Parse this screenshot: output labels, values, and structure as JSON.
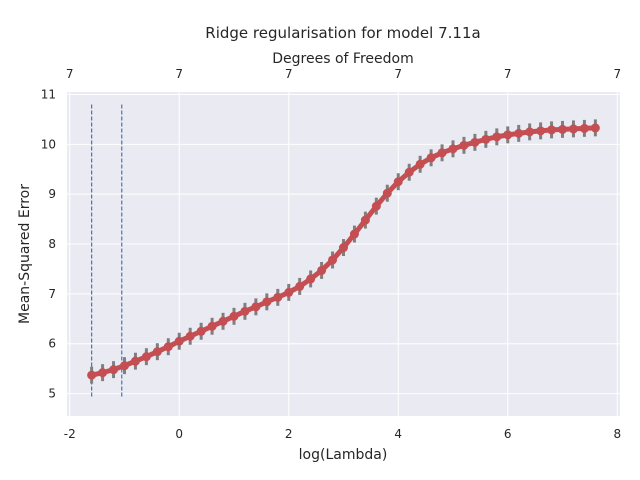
{
  "chart_data": {
    "type": "line",
    "title": "Ridge regularisation for model 7.11a",
    "xlabel": "log(Lambda)",
    "ylabel": "Mean-Squared Error",
    "top_xlabel": "Degrees of Freedom",
    "xlim": [
      -2.05,
      8.05
    ],
    "ylim": [
      4.55,
      11.05
    ],
    "xticks": [
      -2,
      0,
      2,
      4,
      6,
      8
    ],
    "yticks": [
      5,
      6,
      7,
      8,
      9,
      10,
      11
    ],
    "top_ticks": [
      {
        "x": -2,
        "label": "7"
      },
      {
        "x": 0,
        "label": "7"
      },
      {
        "x": 2,
        "label": "7"
      },
      {
        "x": 4,
        "label": "7"
      },
      {
        "x": 6,
        "label": "7"
      },
      {
        "x": 8,
        "label": "7"
      }
    ],
    "grid": true,
    "vlines": [
      -1.6,
      -1.05
    ],
    "vline_range": [
      4.9,
      10.8
    ],
    "series": [
      {
        "color": "#c44e52",
        "errorbar_color": "#7f7f7f",
        "x": [
          -1.6,
          -1.4,
          -1.2,
          -1.0,
          -0.8,
          -0.6,
          -0.4,
          -0.2,
          0.0,
          0.2,
          0.4,
          0.6,
          0.8,
          1.0,
          1.2,
          1.4,
          1.6,
          1.8,
          2.0,
          2.2,
          2.4,
          2.6,
          2.8,
          3.0,
          3.2,
          3.4,
          3.6,
          3.8,
          4.0,
          4.2,
          4.4,
          4.6,
          4.8,
          5.0,
          5.2,
          5.4,
          5.6,
          5.8,
          6.0,
          6.2,
          6.4,
          6.6,
          6.8,
          7.0,
          7.2,
          7.4,
          7.6
        ],
        "y": [
          5.37,
          5.42,
          5.48,
          5.56,
          5.65,
          5.74,
          5.84,
          5.94,
          6.05,
          6.15,
          6.25,
          6.35,
          6.45,
          6.55,
          6.65,
          6.74,
          6.84,
          6.93,
          7.03,
          7.15,
          7.3,
          7.47,
          7.68,
          7.93,
          8.2,
          8.48,
          8.76,
          9.02,
          9.25,
          9.44,
          9.6,
          9.73,
          9.83,
          9.91,
          9.98,
          10.04,
          10.1,
          10.15,
          10.19,
          10.22,
          10.25,
          10.27,
          10.29,
          10.3,
          10.31,
          10.32,
          10.33
        ],
        "yerr": [
          0.17,
          0.17,
          0.17,
          0.17,
          0.17,
          0.17,
          0.17,
          0.17,
          0.17,
          0.17,
          0.17,
          0.17,
          0.17,
          0.17,
          0.17,
          0.17,
          0.17,
          0.17,
          0.17,
          0.17,
          0.17,
          0.17,
          0.17,
          0.17,
          0.17,
          0.17,
          0.17,
          0.17,
          0.17,
          0.17,
          0.17,
          0.17,
          0.17,
          0.17,
          0.17,
          0.17,
          0.17,
          0.17,
          0.17,
          0.17,
          0.17,
          0.17,
          0.17,
          0.17,
          0.17,
          0.17,
          0.17
        ]
      }
    ],
    "colors": {
      "background": "#eaeaf2",
      "grid": "#ffffff",
      "vline": "#4c72b0",
      "text": "#262626"
    }
  }
}
